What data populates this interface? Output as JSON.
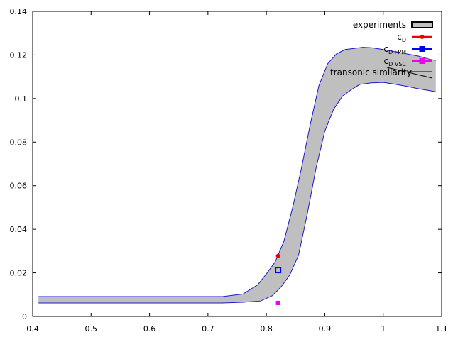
{
  "chart_data": {
    "type": "line",
    "title": "",
    "xlabel": "",
    "ylabel": "",
    "xlim": [
      0.4,
      1.1
    ],
    "ylim": [
      0,
      0.14
    ],
    "x_ticks": [
      "0.4",
      "0.5",
      "0.6",
      "0.7",
      "0.8",
      "0.9",
      "1",
      "1.1"
    ],
    "y_ticks": [
      "0",
      "0.02",
      "0.04",
      "0.06",
      "0.08",
      "0.1",
      "0.12",
      "0.14"
    ],
    "grid": false,
    "legend_position": "top-right",
    "legend": [
      {
        "label": "experiments",
        "sub": ""
      },
      {
        "label": "c",
        "sub": "D"
      },
      {
        "label": "c",
        "sub": "D FPM"
      },
      {
        "label": "c",
        "sub": "D VSC"
      }
    ],
    "annotation": "transonic similarity",
    "series": [
      {
        "name": "experiments",
        "kind": "band",
        "color": "#bfbfbf",
        "edge_color": "#1a1acc",
        "upper": [
          [
            0.41,
            0.0091
          ],
          [
            0.5,
            0.0091
          ],
          [
            0.6,
            0.0091
          ],
          [
            0.7,
            0.0091
          ],
          [
            0.725,
            0.0091
          ],
          [
            0.76,
            0.0103
          ],
          [
            0.785,
            0.0145
          ],
          [
            0.8,
            0.0195
          ],
          [
            0.815,
            0.025
          ],
          [
            0.83,
            0.0345
          ],
          [
            0.845,
            0.05
          ],
          [
            0.86,
            0.068
          ],
          [
            0.875,
            0.088
          ],
          [
            0.89,
            0.106
          ],
          [
            0.905,
            0.116
          ],
          [
            0.92,
            0.1205
          ],
          [
            0.935,
            0.1225
          ],
          [
            0.95,
            0.123
          ],
          [
            0.965,
            0.1235
          ],
          [
            0.98,
            0.1233
          ],
          [
            1.0,
            0.1225
          ],
          [
            1.02,
            0.1215
          ],
          [
            1.04,
            0.1205
          ],
          [
            1.06,
            0.1195
          ],
          [
            1.08,
            0.118
          ],
          [
            1.09,
            0.1175
          ]
        ],
        "lower": [
          [
            0.41,
            0.0062
          ],
          [
            0.5,
            0.0062
          ],
          [
            0.6,
            0.0062
          ],
          [
            0.7,
            0.0062
          ],
          [
            0.725,
            0.0062
          ],
          [
            0.76,
            0.0065
          ],
          [
            0.79,
            0.0071
          ],
          [
            0.81,
            0.0095
          ],
          [
            0.825,
            0.0135
          ],
          [
            0.84,
            0.019
          ],
          [
            0.855,
            0.028
          ],
          [
            0.87,
            0.047
          ],
          [
            0.885,
            0.068
          ],
          [
            0.9,
            0.085
          ],
          [
            0.915,
            0.095
          ],
          [
            0.93,
            0.101
          ],
          [
            0.945,
            0.104
          ],
          [
            0.96,
            0.1065
          ],
          [
            0.98,
            0.1072
          ],
          [
            1.0,
            0.1074
          ],
          [
            1.02,
            0.1066
          ],
          [
            1.04,
            0.1056
          ],
          [
            1.06,
            0.1045
          ],
          [
            1.08,
            0.1036
          ],
          [
            1.09,
            0.1031
          ]
        ]
      },
      {
        "name": "cD",
        "kind": "points",
        "color": "#ee0000",
        "marker": "dot",
        "points": [
          [
            0.82,
            0.0278
          ]
        ]
      },
      {
        "name": "cD FPM",
        "kind": "points",
        "color": "#0000ee",
        "marker": "hollow-square",
        "points": [
          [
            0.82,
            0.0213
          ]
        ]
      },
      {
        "name": "cD VSC",
        "kind": "points",
        "color": "#ee00ee",
        "marker": "square",
        "points": [
          [
            0.82,
            0.0062
          ]
        ]
      }
    ]
  }
}
